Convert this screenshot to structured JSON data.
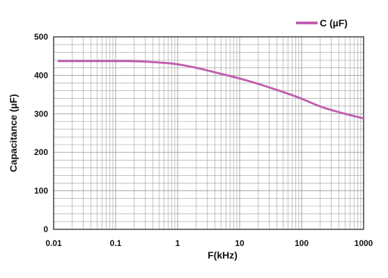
{
  "chart_data": {
    "type": "line",
    "xscale": "log",
    "xlim": [
      0.01,
      1000
    ],
    "ylim": [
      0,
      500
    ],
    "grid": true,
    "legend_position": "top-right",
    "colors": {
      "series": "#c060b0",
      "grid": "#999999",
      "axis": "#111111"
    },
    "xlabel": "F(kHz)",
    "ylabel": "Capacitance (µF)",
    "x_ticks": [
      {
        "value": 0.01,
        "label": "0.01"
      },
      {
        "value": 0.1,
        "label": "0.1"
      },
      {
        "value": 1,
        "label": "1"
      },
      {
        "value": 10,
        "label": "10"
      },
      {
        "value": 100,
        "label": "100"
      },
      {
        "value": 1000,
        "label": "1000"
      }
    ],
    "y_ticks": [
      {
        "value": 0,
        "label": "0"
      },
      {
        "value": 100,
        "label": "100"
      },
      {
        "value": 200,
        "label": "200"
      },
      {
        "value": 300,
        "label": "300"
      },
      {
        "value": 400,
        "label": "400"
      },
      {
        "value": 500,
        "label": "500"
      }
    ],
    "series": [
      {
        "name": "C (µF)",
        "x": [
          0.012,
          0.05,
          0.1,
          0.2,
          0.5,
          1,
          2,
          5,
          10,
          20,
          50,
          100,
          200,
          500,
          1000
        ],
        "y": [
          437,
          437,
          437,
          437,
          434,
          429,
          420,
          404,
          392,
          378,
          357,
          340,
          318,
          300,
          288
        ]
      }
    ]
  }
}
